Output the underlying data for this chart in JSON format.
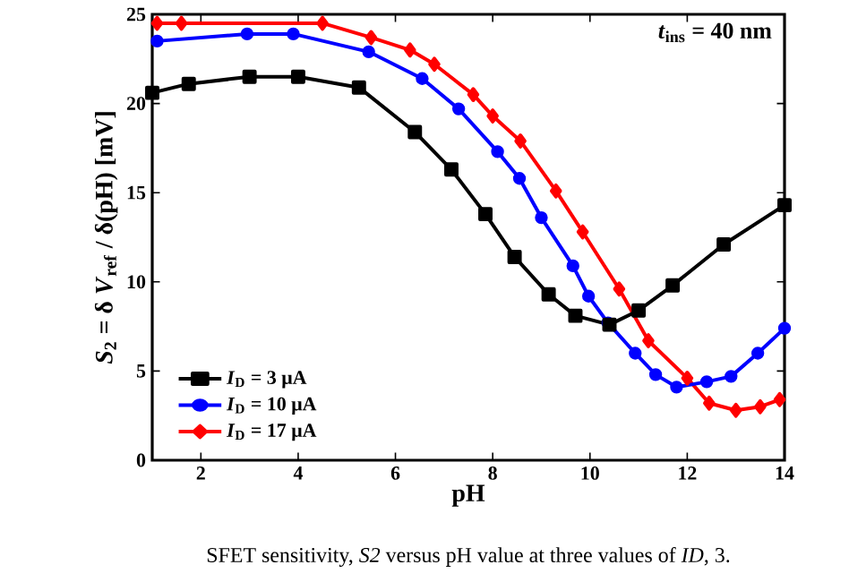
{
  "chart_data": {
    "type": "line",
    "xlabel": "pH",
    "ylabel": "*S*$_{2}$ = δ *V*$_{ref}$ / δ(pH)  [mV]",
    "x": [
      1,
      1.75,
      3,
      4,
      5.25,
      6.4,
      7.15,
      7.85,
      8.45,
      9.15,
      9.7,
      10.4,
      11.0,
      11.7,
      12.75,
      14
    ],
    "series": [
      {
        "name": "*I*$_{D}$ = 3 μA",
        "color": "#000000",
        "marker": "square",
        "values": [
          20.6,
          21.1,
          21.5,
          21.5,
          20.9,
          18.4,
          16.3,
          13.8,
          11.4,
          9.3,
          8.1,
          7.6,
          8.4,
          9.8,
          12.1,
          14.3
        ]
      },
      {
        "name": "*I*$_{D}$ = 10 μA",
        "color": "#0000ff",
        "marker": "circle",
        "x": [
          1.1,
          2.95,
          3.9,
          5.45,
          6.55,
          7.3,
          8.1,
          8.55,
          9.0,
          9.65,
          9.97,
          10.37,
          10.93,
          11.35,
          11.78,
          12.4,
          12.9,
          13.45,
          14
        ],
        "values": [
          23.5,
          23.9,
          23.9,
          22.9,
          21.4,
          19.7,
          17.3,
          15.8,
          13.6,
          10.9,
          9.2,
          7.7,
          6.0,
          4.8,
          4.1,
          4.4,
          4.7,
          6.0,
          7.4
        ]
      },
      {
        "name": "*I*$_{D}$ = 17 μA",
        "color": "#ff0000",
        "marker": "diamond",
        "x": [
          1.1,
          1.6,
          4.5,
          5.5,
          6.3,
          6.8,
          7.6,
          8.0,
          8.57,
          9.3,
          9.85,
          10.6,
          11.2,
          12.0,
          12.45,
          13.0,
          13.5,
          13.9
        ],
        "values": [
          24.5,
          24.5,
          24.5,
          23.7,
          23.0,
          22.2,
          20.5,
          19.3,
          17.9,
          15.1,
          12.8,
          9.6,
          6.7,
          4.6,
          3.2,
          2.8,
          3.0,
          3.4
        ]
      }
    ],
    "xlim": [
      1,
      14
    ],
    "xticks": [
      2,
      4,
      6,
      8,
      10,
      12,
      14
    ],
    "ylim": [
      0,
      25
    ],
    "yticks": [
      0,
      5,
      10,
      15,
      20,
      25
    ],
    "legend": "bottom left",
    "grid": false,
    "line_style": "solid",
    "annotations": [
      "*t*$_{ins}$ = 40 nm",
      "SFET sensitivity, *S2* versus pH value at three values of *ID*, 3."
    ]
  }
}
